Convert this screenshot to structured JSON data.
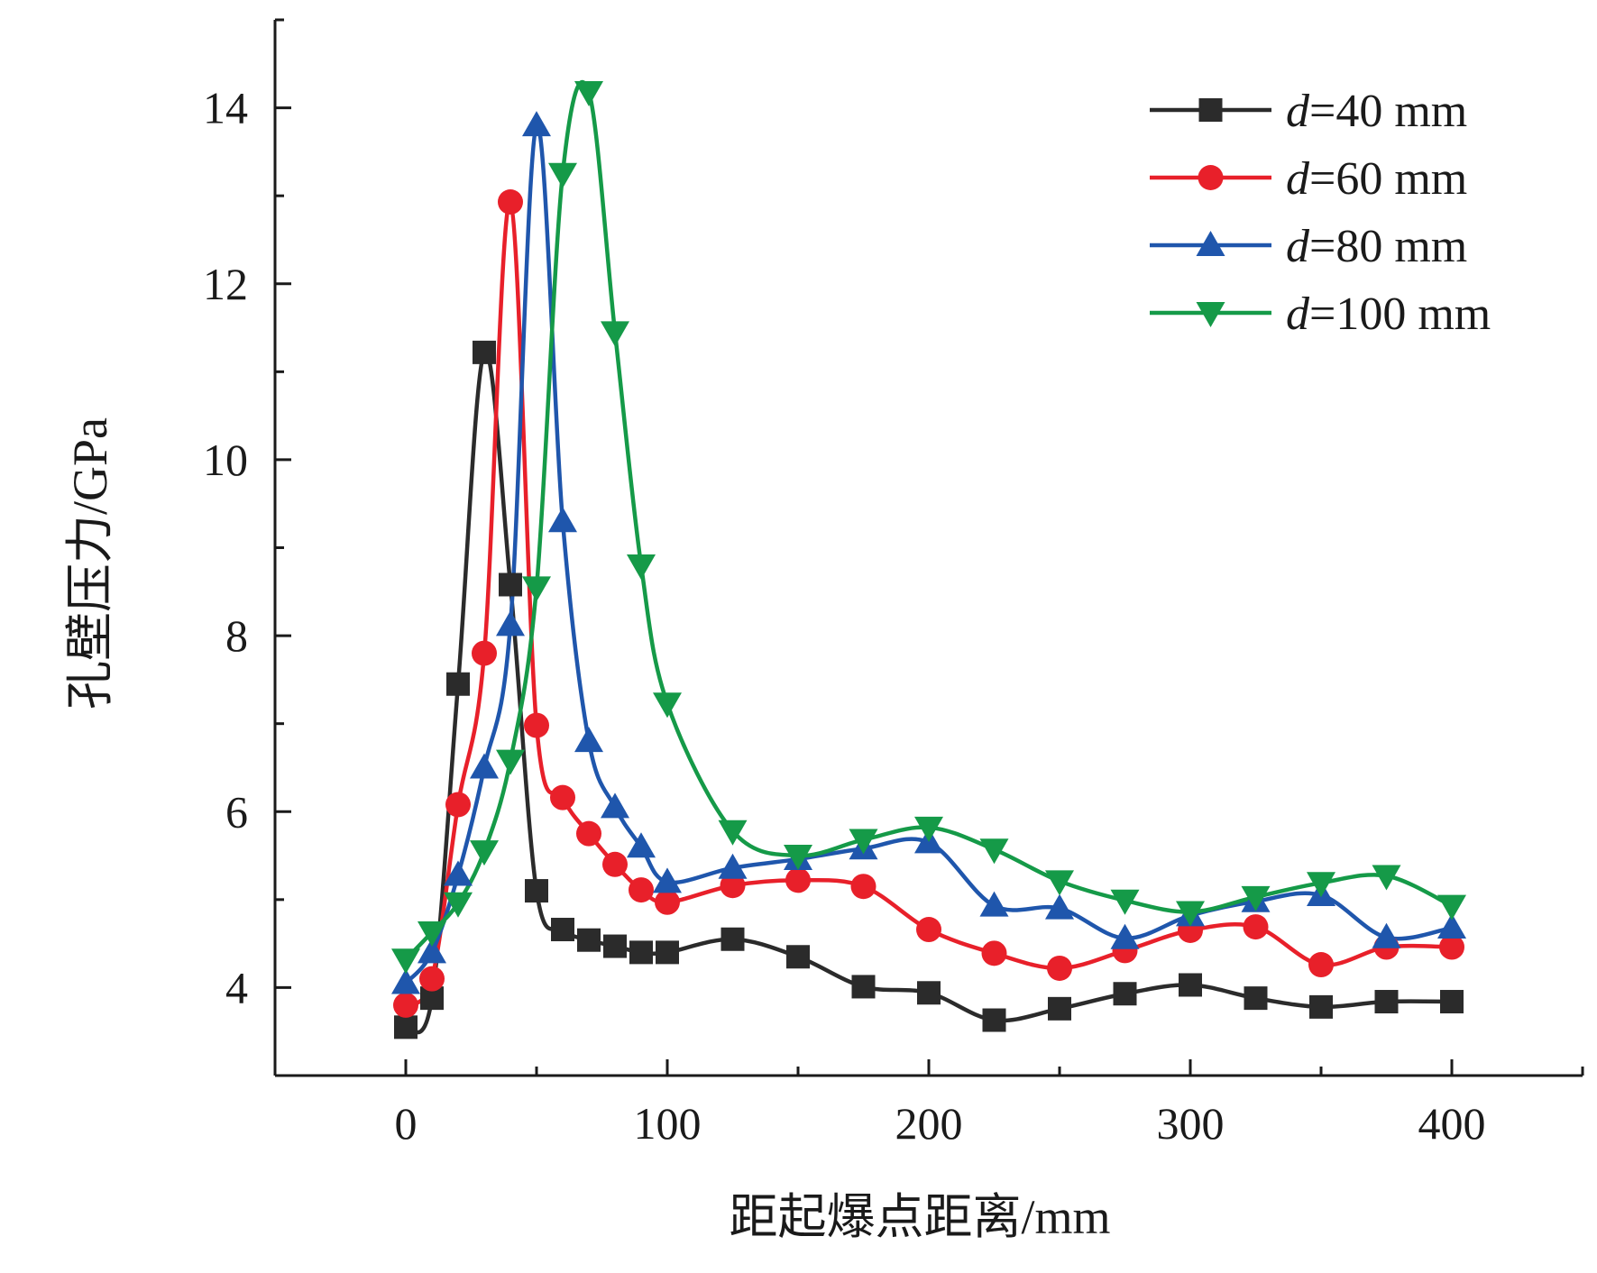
{
  "chart_data": {
    "type": "line",
    "xlabel": "距起爆点距离/mm",
    "ylabel": "孔壁压力/GPa",
    "xlim": [
      -50,
      450
    ],
    "ylim": [
      3,
      15
    ],
    "xticks": [
      0,
      100,
      200,
      300,
      400
    ],
    "yticks": [
      4,
      6,
      8,
      10,
      12,
      14
    ],
    "grid": false,
    "legend_position": "top-right",
    "series": [
      {
        "name": "d=40 mm",
        "legend_var": "d",
        "legend_rest": "=40 mm",
        "color": "#2b2b2b",
        "marker": "square",
        "x": [
          0,
          10,
          20,
          30,
          40,
          50,
          60,
          70,
          80,
          90,
          100,
          125,
          150,
          175,
          200,
          225,
          250,
          275,
          300,
          325,
          350,
          375,
          400
        ],
        "y": [
          3.55,
          3.88,
          7.45,
          11.22,
          8.58,
          5.1,
          4.66,
          4.54,
          4.47,
          4.4,
          4.4,
          4.55,
          4.35,
          4.01,
          3.94,
          3.63,
          3.76,
          3.93,
          4.03,
          3.88,
          3.78,
          3.84,
          3.84
        ]
      },
      {
        "name": "d=60 mm",
        "legend_var": "d",
        "legend_rest": "=60 mm",
        "color": "#e8202a",
        "marker": "circle",
        "x": [
          0,
          10,
          20,
          30,
          40,
          50,
          60,
          70,
          80,
          90,
          100,
          125,
          150,
          175,
          200,
          225,
          250,
          275,
          300,
          325,
          350,
          375,
          400
        ],
        "y": [
          3.8,
          4.1,
          6.08,
          7.8,
          12.93,
          6.98,
          6.16,
          5.75,
          5.4,
          5.11,
          4.97,
          5.16,
          5.22,
          5.15,
          4.66,
          4.39,
          4.22,
          4.42,
          4.65,
          4.69,
          4.26,
          4.46,
          4.46
        ]
      },
      {
        "name": "d=80 mm",
        "legend_var": "d",
        "legend_rest": "=80 mm",
        "color": "#1f56ac",
        "marker": "triangle-up",
        "x": [
          0,
          10,
          20,
          30,
          40,
          50,
          60,
          70,
          80,
          90,
          100,
          125,
          150,
          175,
          200,
          225,
          250,
          275,
          300,
          325,
          350,
          375,
          400
        ],
        "y": [
          4.05,
          4.4,
          5.28,
          6.5,
          8.12,
          13.8,
          9.3,
          6.8,
          6.05,
          5.6,
          5.2,
          5.36,
          5.46,
          5.58,
          5.65,
          4.93,
          4.9,
          4.56,
          4.82,
          4.98,
          5.05,
          4.57,
          4.68
        ]
      },
      {
        "name": "d=100 mm",
        "legend_var": "d",
        "legend_rest": "=100 mm",
        "color": "#159a48",
        "marker": "triangle-down",
        "x": [
          0,
          10,
          20,
          30,
          40,
          50,
          60,
          70,
          80,
          90,
          100,
          125,
          150,
          175,
          200,
          225,
          250,
          275,
          300,
          325,
          350,
          375,
          400
        ],
        "y": [
          4.32,
          4.63,
          4.96,
          5.55,
          6.58,
          8.55,
          13.25,
          14.18,
          11.45,
          8.8,
          7.23,
          5.78,
          5.5,
          5.68,
          5.82,
          5.57,
          5.21,
          4.99,
          4.86,
          5.03,
          5.19,
          5.27,
          4.93
        ]
      }
    ]
  }
}
